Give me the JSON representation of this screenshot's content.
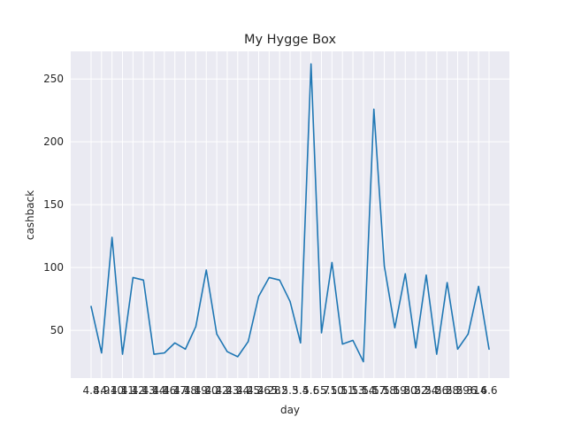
{
  "chart_data": {
    "type": "line",
    "title": "My Hygge Box",
    "xlabel": "day",
    "ylabel": "cashback",
    "grid": true,
    "ylim": [
      12,
      272
    ],
    "yticks": [
      50,
      100,
      150,
      200,
      250
    ],
    "categories": [
      "4.8",
      "4.9",
      "4.10",
      "4.11",
      "4.12",
      "4.13",
      "4.14",
      "4.16",
      "4.17",
      "4.18",
      "4.19",
      "4.20",
      "4.22",
      "4.23",
      "4.24",
      "4.25",
      "4.26",
      "4.28",
      "5.2",
      "5.3",
      "5.4",
      "5.6",
      "5.7",
      "5.10",
      "5.11",
      "5.13",
      "5.14",
      "5.17",
      "5.18",
      "5.19",
      "5.20",
      "5.22",
      "5.24",
      "5.26",
      "5.28",
      "5.29",
      "5.31",
      "6.4",
      "6.6"
    ],
    "series": [
      {
        "values": [
          69,
          32,
          124,
          31,
          92,
          90,
          31,
          32,
          40,
          35,
          53,
          98,
          47,
          33,
          29,
          41,
          77,
          92,
          90,
          73,
          40,
          262,
          48,
          104,
          39,
          42,
          25,
          226,
          101,
          52,
          95,
          36,
          94,
          31,
          88,
          35,
          47,
          85,
          35
        ],
        "color": "#1f77b4"
      }
    ],
    "colors": {
      "plot_background": "#eaeaf2",
      "grid": "#ffffff",
      "text": "#262626"
    }
  }
}
